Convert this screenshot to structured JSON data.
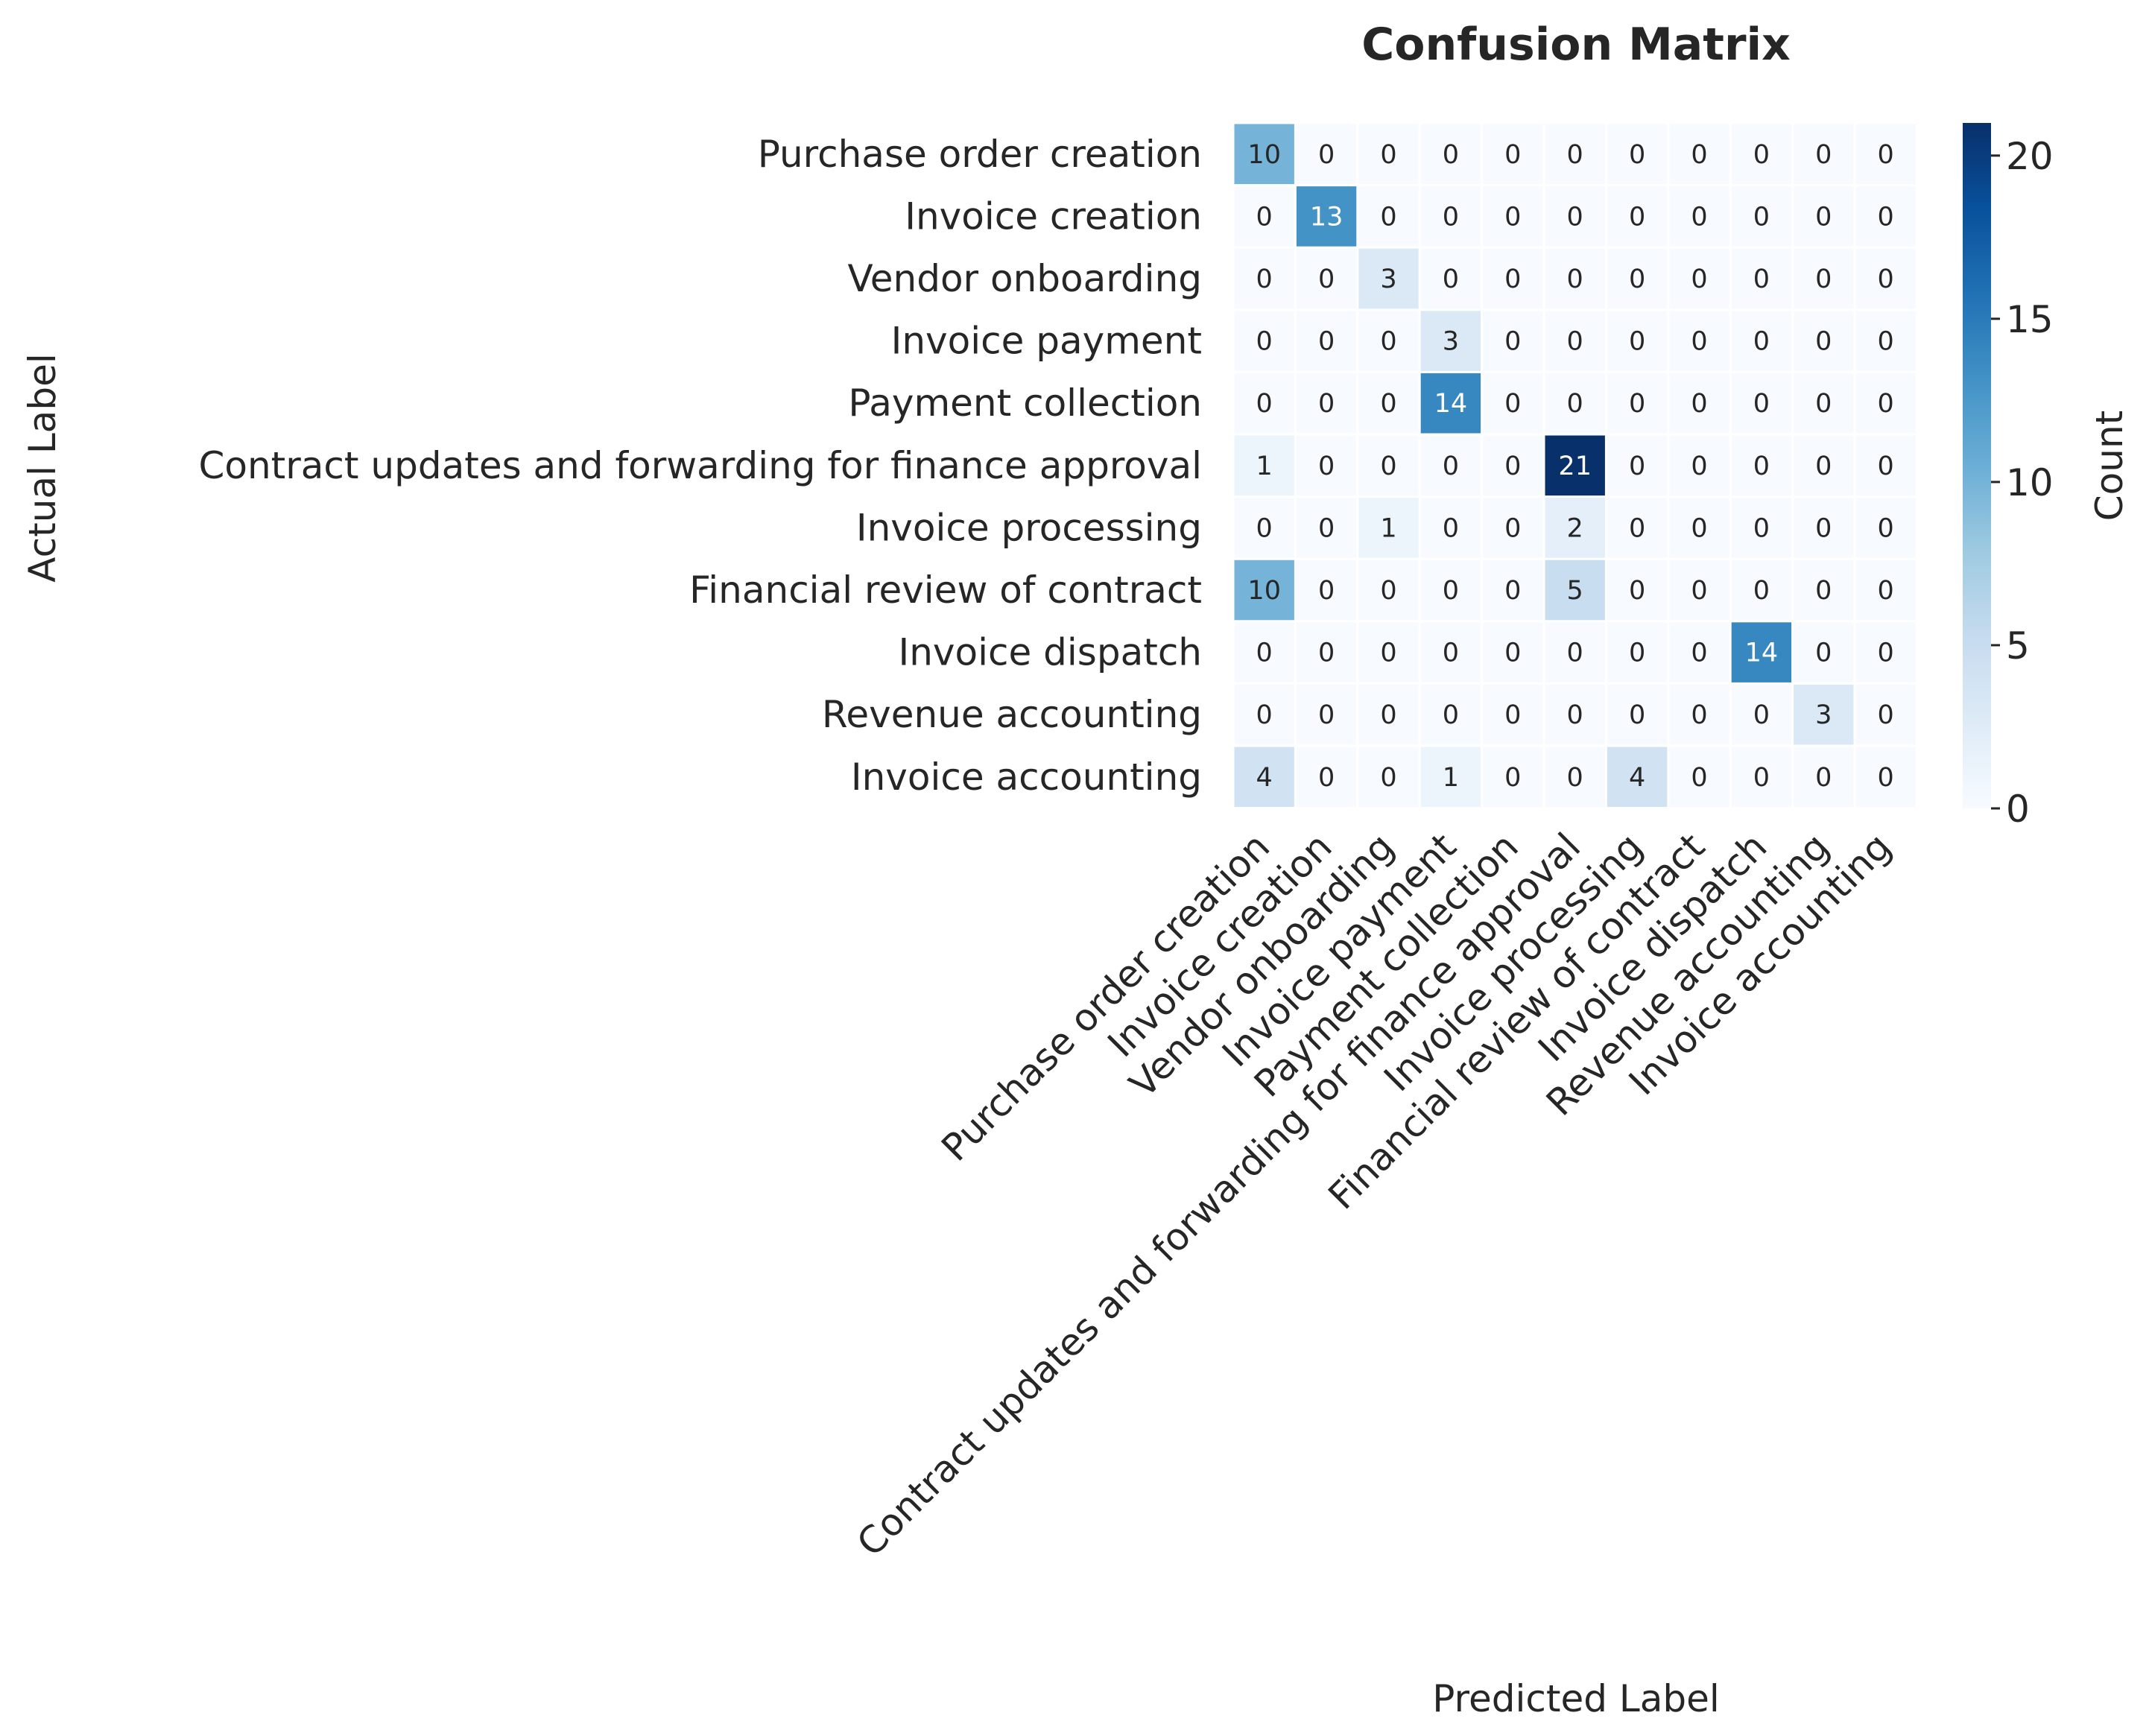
{
  "chart_data": {
    "type": "heatmap",
    "title": "Confusion Matrix",
    "xlabel": "Predicted Label",
    "ylabel": "Actual Label",
    "row_labels": [
      "Purchase order creation",
      "Invoice creation",
      "Vendor onboarding",
      "Invoice payment",
      "Payment collection",
      "Contract updates and forwarding for finance approval",
      "Invoice processing",
      "Financial review of contract",
      "Invoice dispatch",
      "Revenue accounting",
      "Invoice accounting"
    ],
    "col_labels": [
      "Purchase order creation",
      "Invoice creation",
      "Vendor onboarding",
      "Invoice payment",
      "Payment collection",
      "Contract updates and forwarding for finance approval",
      "Invoice processing",
      "Financial review of contract",
      "Invoice dispatch",
      "Revenue accounting",
      "Invoice accounting"
    ],
    "matrix": [
      [
        10,
        0,
        0,
        0,
        0,
        0,
        0,
        0,
        0,
        0,
        0
      ],
      [
        0,
        13,
        0,
        0,
        0,
        0,
        0,
        0,
        0,
        0,
        0
      ],
      [
        0,
        0,
        3,
        0,
        0,
        0,
        0,
        0,
        0,
        0,
        0
      ],
      [
        0,
        0,
        0,
        3,
        0,
        0,
        0,
        0,
        0,
        0,
        0
      ],
      [
        0,
        0,
        0,
        14,
        0,
        0,
        0,
        0,
        0,
        0,
        0
      ],
      [
        1,
        0,
        0,
        0,
        0,
        21,
        0,
        0,
        0,
        0,
        0
      ],
      [
        0,
        0,
        1,
        0,
        0,
        2,
        0,
        0,
        0,
        0,
        0
      ],
      [
        10,
        0,
        0,
        0,
        0,
        5,
        0,
        0,
        0,
        0,
        0
      ],
      [
        0,
        0,
        0,
        0,
        0,
        0,
        0,
        0,
        14,
        0,
        0
      ],
      [
        0,
        0,
        0,
        0,
        0,
        0,
        0,
        0,
        0,
        3,
        0
      ],
      [
        4,
        0,
        0,
        1,
        0,
        0,
        4,
        0,
        0,
        0,
        0
      ]
    ],
    "colormap": "Blues",
    "vmin": 0,
    "vmax": 21,
    "colorbar": {
      "label": "Count",
      "ticks": [
        0,
        5,
        10,
        15,
        20
      ]
    },
    "annotations": true,
    "grid": false
  }
}
